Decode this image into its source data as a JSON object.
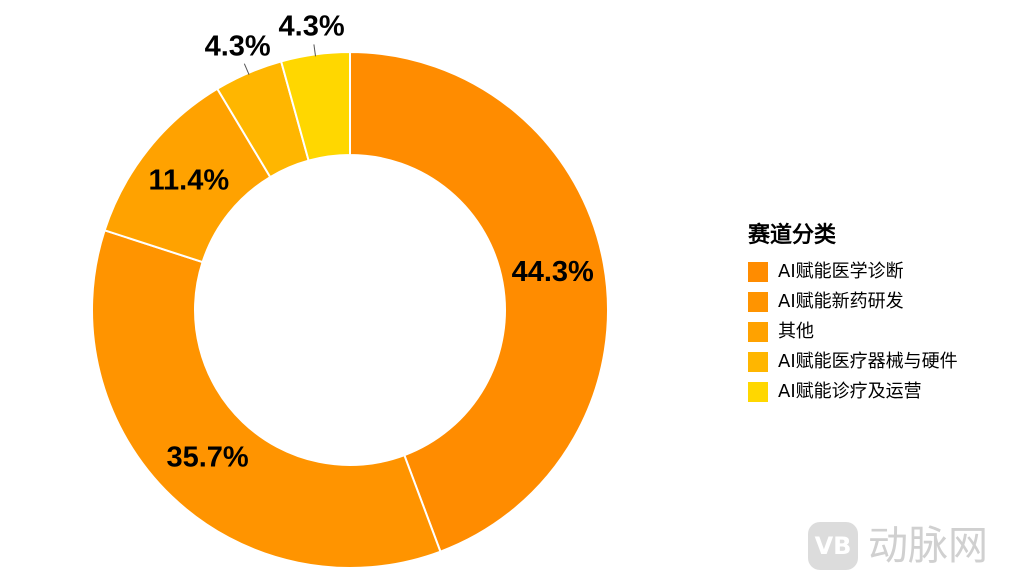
{
  "chart_data": {
    "type": "donut",
    "legend_title": "赛道分类",
    "categories": [
      "AI赋能医学诊断",
      "AI赋能新药研发",
      "其他",
      "AI赋能医疗器械与硬件",
      "AI赋能诊疗及运营"
    ],
    "values": [
      44.3,
      35.7,
      11.4,
      4.3,
      4.3
    ],
    "value_labels": [
      "44.3%",
      "35.7%",
      "11.4%",
      "4.3%",
      "4.3%"
    ],
    "colors": [
      "#FF8C00",
      "#FF9400",
      "#FFA200",
      "#FFB600",
      "#FFD700"
    ],
    "legend": "right"
  },
  "watermark": "动脉网"
}
